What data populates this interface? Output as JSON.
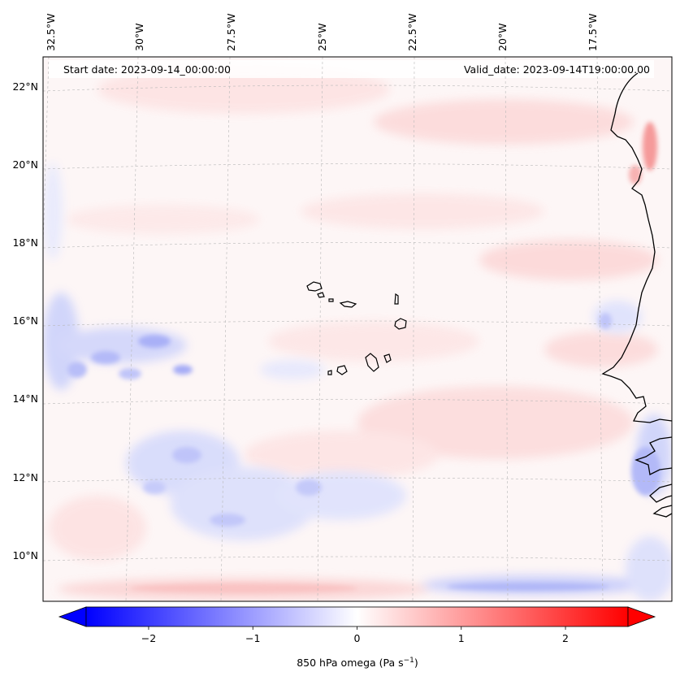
{
  "map": {
    "start_date_label": "Start date: 2023-09-14_00:00:00",
    "valid_date_label": "Valid_date: 2023-09-14T19:00:00.00",
    "lon_labels": [
      "32.5°W",
      "30°W",
      "27.5°W",
      "25°W",
      "22.5°W",
      "20°W",
      "17.5°W"
    ],
    "lat_labels": [
      "22°N",
      "20°N",
      "18°N",
      "16°N",
      "14°N",
      "12°N",
      "10°N"
    ],
    "field": "850 hPa omega",
    "colormap": "bwr",
    "colors": {
      "negative": "#0000ff",
      "zero": "#ffffff",
      "positive": "#ff0000",
      "coastline": "#000000",
      "grid": "#b0b0b0"
    }
  },
  "colorbar": {
    "label": "850 hPa omega (Pa s",
    "label_sup": "−1",
    "label_close": ")",
    "ticks": [
      "−2",
      "−1",
      "0",
      "1",
      "2"
    ],
    "tick_values": [
      -2,
      -1,
      0,
      1,
      2
    ],
    "range": [
      -2.6,
      2.6
    ],
    "extend": "both"
  },
  "chart_data": {
    "type": "heatmap",
    "title": "",
    "xlabel": "",
    "ylabel": "",
    "colorbar_label": "850 hPa omega (Pa s−1)",
    "vmin": -2.6,
    "vmax": 2.6,
    "lon_ticks_degW": [
      32.5,
      30,
      27.5,
      25,
      22.5,
      20,
      17.5
    ],
    "lat_ticks_degN": [
      22,
      20,
      18,
      16,
      14,
      12,
      10
    ]
  }
}
